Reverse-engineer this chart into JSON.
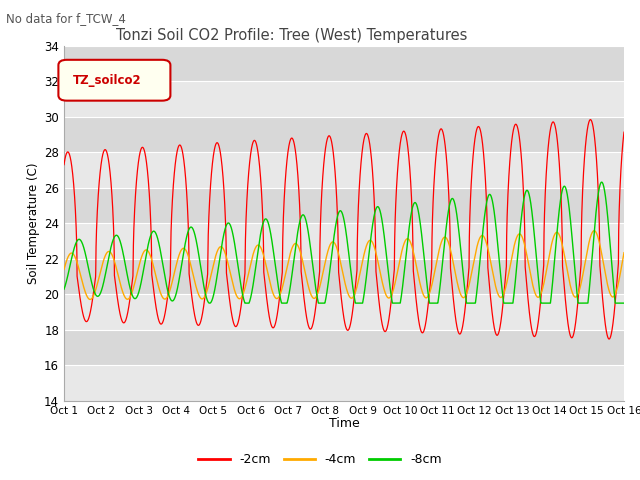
{
  "title": "Tonzi Soil CO2 Profile: Tree (West) Temperatures",
  "subtitle": "No data for f_TCW_4",
  "ylabel": "Soil Temperature (C)",
  "xlabel": "Time",
  "legend_label": "TZ_soilco2",
  "ylim": [
    14,
    34
  ],
  "yticks": [
    14,
    16,
    18,
    20,
    22,
    24,
    26,
    28,
    30,
    32,
    34
  ],
  "xtick_labels": [
    "Oct 1",
    "Oct 2",
    "Oct 3",
    "Oct 4",
    "Oct 5",
    "Oct 6",
    "Oct 7",
    "Oct 8",
    "Oct 9",
    "Oct 10",
    "Oct 11",
    "Oct 12",
    "Oct 13",
    "Oct 14",
    "Oct 15",
    "Oct 16"
  ],
  "series_labels": [
    "-2cm",
    "-4cm",
    "-8cm"
  ],
  "series_colors": [
    "#ff0000",
    "#ffaa00",
    "#00cc00"
  ],
  "background_color": "#ffffff",
  "plot_bg_color": "#ebebeb",
  "grid_color": "#ffffff",
  "grid_stripe_colors": [
    "#e0e0e0",
    "#d8d8d8"
  ]
}
